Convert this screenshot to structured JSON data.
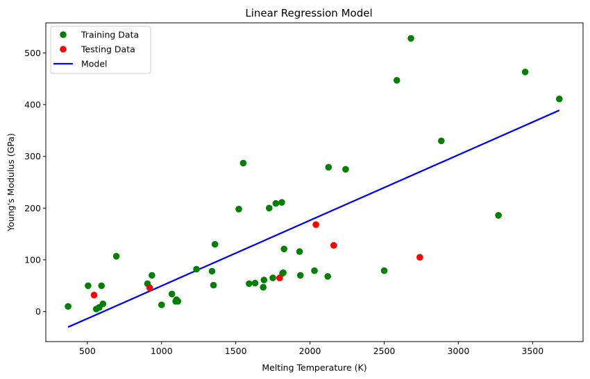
{
  "chart_data": {
    "type": "scatter",
    "title": "Linear Regression Model",
    "xlabel": "Melting Temperature (K)",
    "ylabel": "Young's Modulus (GPa)",
    "xlim": [
      220,
      3840
    ],
    "ylim": [
      -58,
      558
    ],
    "xticks": [
      500,
      1000,
      1500,
      2000,
      2500,
      3000,
      3500
    ],
    "yticks": [
      0,
      100,
      200,
      300,
      400,
      500
    ],
    "grid": false,
    "legend_position": "top-left",
    "series": [
      {
        "name": "Training Data",
        "kind": "scatter",
        "color": "#008000",
        "points": [
          [
            370,
            10
          ],
          [
            505,
            50
          ],
          [
            560,
            5
          ],
          [
            580,
            8
          ],
          [
            595,
            50
          ],
          [
            605,
            15
          ],
          [
            695,
            107
          ],
          [
            905,
            54
          ],
          [
            935,
            70
          ],
          [
            1000,
            13
          ],
          [
            1070,
            34
          ],
          [
            1095,
            20
          ],
          [
            1100,
            23
          ],
          [
            1110,
            20
          ],
          [
            1235,
            82
          ],
          [
            1340,
            78
          ],
          [
            1350,
            51
          ],
          [
            1360,
            130
          ],
          [
            1520,
            198
          ],
          [
            1550,
            287
          ],
          [
            1590,
            54
          ],
          [
            1630,
            55
          ],
          [
            1685,
            47
          ],
          [
            1690,
            61
          ],
          [
            1725,
            200
          ],
          [
            1750,
            65
          ],
          [
            1770,
            209
          ],
          [
            1810,
            211
          ],
          [
            1815,
            74
          ],
          [
            1820,
            75
          ],
          [
            1825,
            121
          ],
          [
            1930,
            116
          ],
          [
            1935,
            70
          ],
          [
            2030,
            79
          ],
          [
            2120,
            68
          ],
          [
            2125,
            279
          ],
          [
            2240,
            275
          ],
          [
            2500,
            79
          ],
          [
            2585,
            447
          ],
          [
            2680,
            528
          ],
          [
            2885,
            330
          ],
          [
            3270,
            186
          ],
          [
            3450,
            463
          ],
          [
            3680,
            411
          ]
        ]
      },
      {
        "name": "Testing Data",
        "kind": "scatter",
        "color": "#ff0000",
        "points": [
          [
            545,
            32
          ],
          [
            920,
            46
          ],
          [
            1795,
            65
          ],
          [
            2040,
            168
          ],
          [
            2160,
            128
          ],
          [
            2740,
            105
          ]
        ]
      },
      {
        "name": "Model",
        "kind": "line",
        "color": "#0000ff",
        "points": [
          [
            370,
            -30
          ],
          [
            3680,
            389
          ]
        ]
      }
    ]
  }
}
